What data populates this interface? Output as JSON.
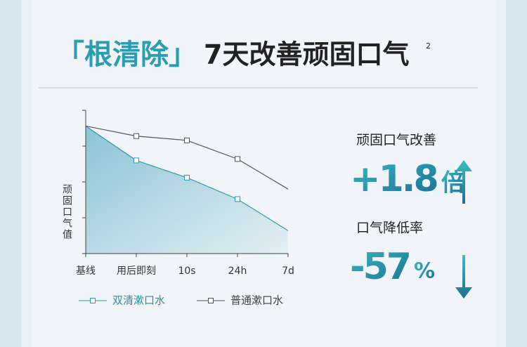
{
  "header": {
    "bracket_title": "「根清除」",
    "title": "7天改善顽固口气",
    "superscript": "2"
  },
  "chart_data": {
    "type": "line",
    "y_label": "顽固口气值",
    "categories": [
      "基线",
      "用后即刻",
      "10s",
      "24h",
      "7d"
    ],
    "series": [
      {
        "name": "双清漱口水",
        "color": "#2a9db0",
        "values": [
          89,
          65,
          53,
          38,
          16
        ],
        "area": true
      },
      {
        "name": "普通漱口水",
        "color": "#555555",
        "values": [
          89,
          82,
          79,
          66,
          45
        ],
        "area": false
      }
    ],
    "ylim": [
      0,
      100
    ],
    "yticks": [
      0,
      25,
      50,
      75,
      100
    ],
    "grid": false
  },
  "stats": [
    {
      "label": "顽固口气改善",
      "value": "+1.8",
      "unit": "倍",
      "direction": "up"
    },
    {
      "label": "口气降低率",
      "value": "-57",
      "unit": "%",
      "direction": "down"
    }
  ]
}
